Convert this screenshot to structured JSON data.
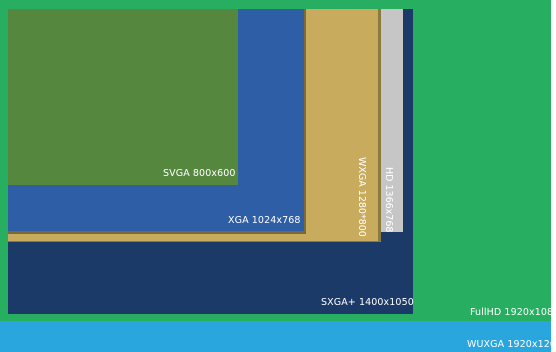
{
  "resolutions": [
    {
      "id": "wuxga",
      "label": "WUXGA 1920x120",
      "color": "#2aa6df",
      "orientation": "horizontal"
    },
    {
      "id": "fullhd",
      "label": "FullHD 1920x108",
      "color": "#27ae60",
      "orientation": "horizontal"
    },
    {
      "id": "sxga",
      "label": "SXGA+ 1400x1050",
      "color": "#1b3a68",
      "orientation": "horizontal"
    },
    {
      "id": "hd",
      "label": "HD 1366x768",
      "color": "#c6c6c6",
      "orientation": "vertical"
    },
    {
      "id": "wxga",
      "label": "WXGA 1280*800",
      "color": "#c9ab5d",
      "shadow_color": "#8a7a3d",
      "orientation": "vertical"
    },
    {
      "id": "xga",
      "label": "XGA 1024x768",
      "color": "#2e5ea5",
      "shadow_color": "#7a6a3a",
      "orientation": "horizontal"
    },
    {
      "id": "svga",
      "label": "SVGA 800x600",
      "color": "#56873f",
      "orientation": "horizontal"
    }
  ]
}
